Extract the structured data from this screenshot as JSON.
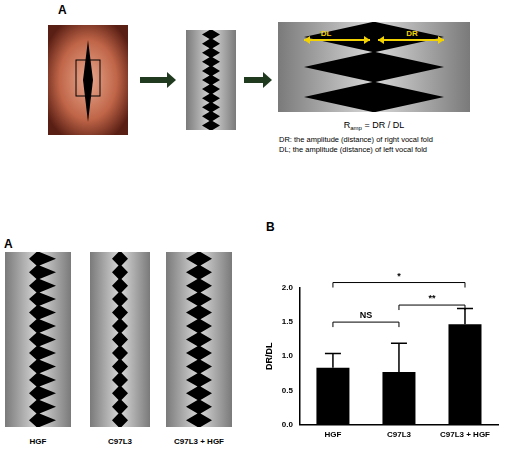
{
  "panels": {
    "top": {
      "label": "A",
      "formula": {
        "symbol": "R",
        "subscript": "amp",
        "rest": " = DR / DL"
      },
      "arrow_labels": [
        "DL",
        "DR"
      ],
      "notes": [
        "DR: the amplitude (distance) of right vocal fold",
        "DL; the amplitude (distance) of left vocal fold"
      ]
    },
    "kymographs": {
      "label": "A",
      "captions": [
        "HGF",
        "C97L3",
        "C97L3 + HGF"
      ]
    },
    "chart_label": "B"
  },
  "chart_data": {
    "type": "bar",
    "y_label": "DR/DL",
    "categories": [
      "HGF",
      "C97L3",
      "C97L3 + HGF"
    ],
    "values": [
      0.83,
      0.77,
      1.47
    ],
    "errors": [
      0.21,
      0.42,
      0.23
    ],
    "color": "#000000",
    "ylim": [
      0,
      2
    ],
    "yticks": [
      {
        "value": 0,
        "label": "0.0"
      },
      {
        "value": 0.5,
        "label": "0.5"
      },
      {
        "value": 1,
        "label": "1.0"
      },
      {
        "value": 1.5,
        "label": "1.5"
      },
      {
        "value": 2,
        "label": "2.0"
      }
    ],
    "grid": false,
    "brackets": [
      {
        "from": 0,
        "to": 1,
        "y": 1.5,
        "label": "NS"
      },
      {
        "from": 1,
        "to": 2,
        "y": 1.75,
        "label": "**"
      },
      {
        "from": 0,
        "to": 2,
        "y": 2.08,
        "label": "*"
      }
    ]
  }
}
